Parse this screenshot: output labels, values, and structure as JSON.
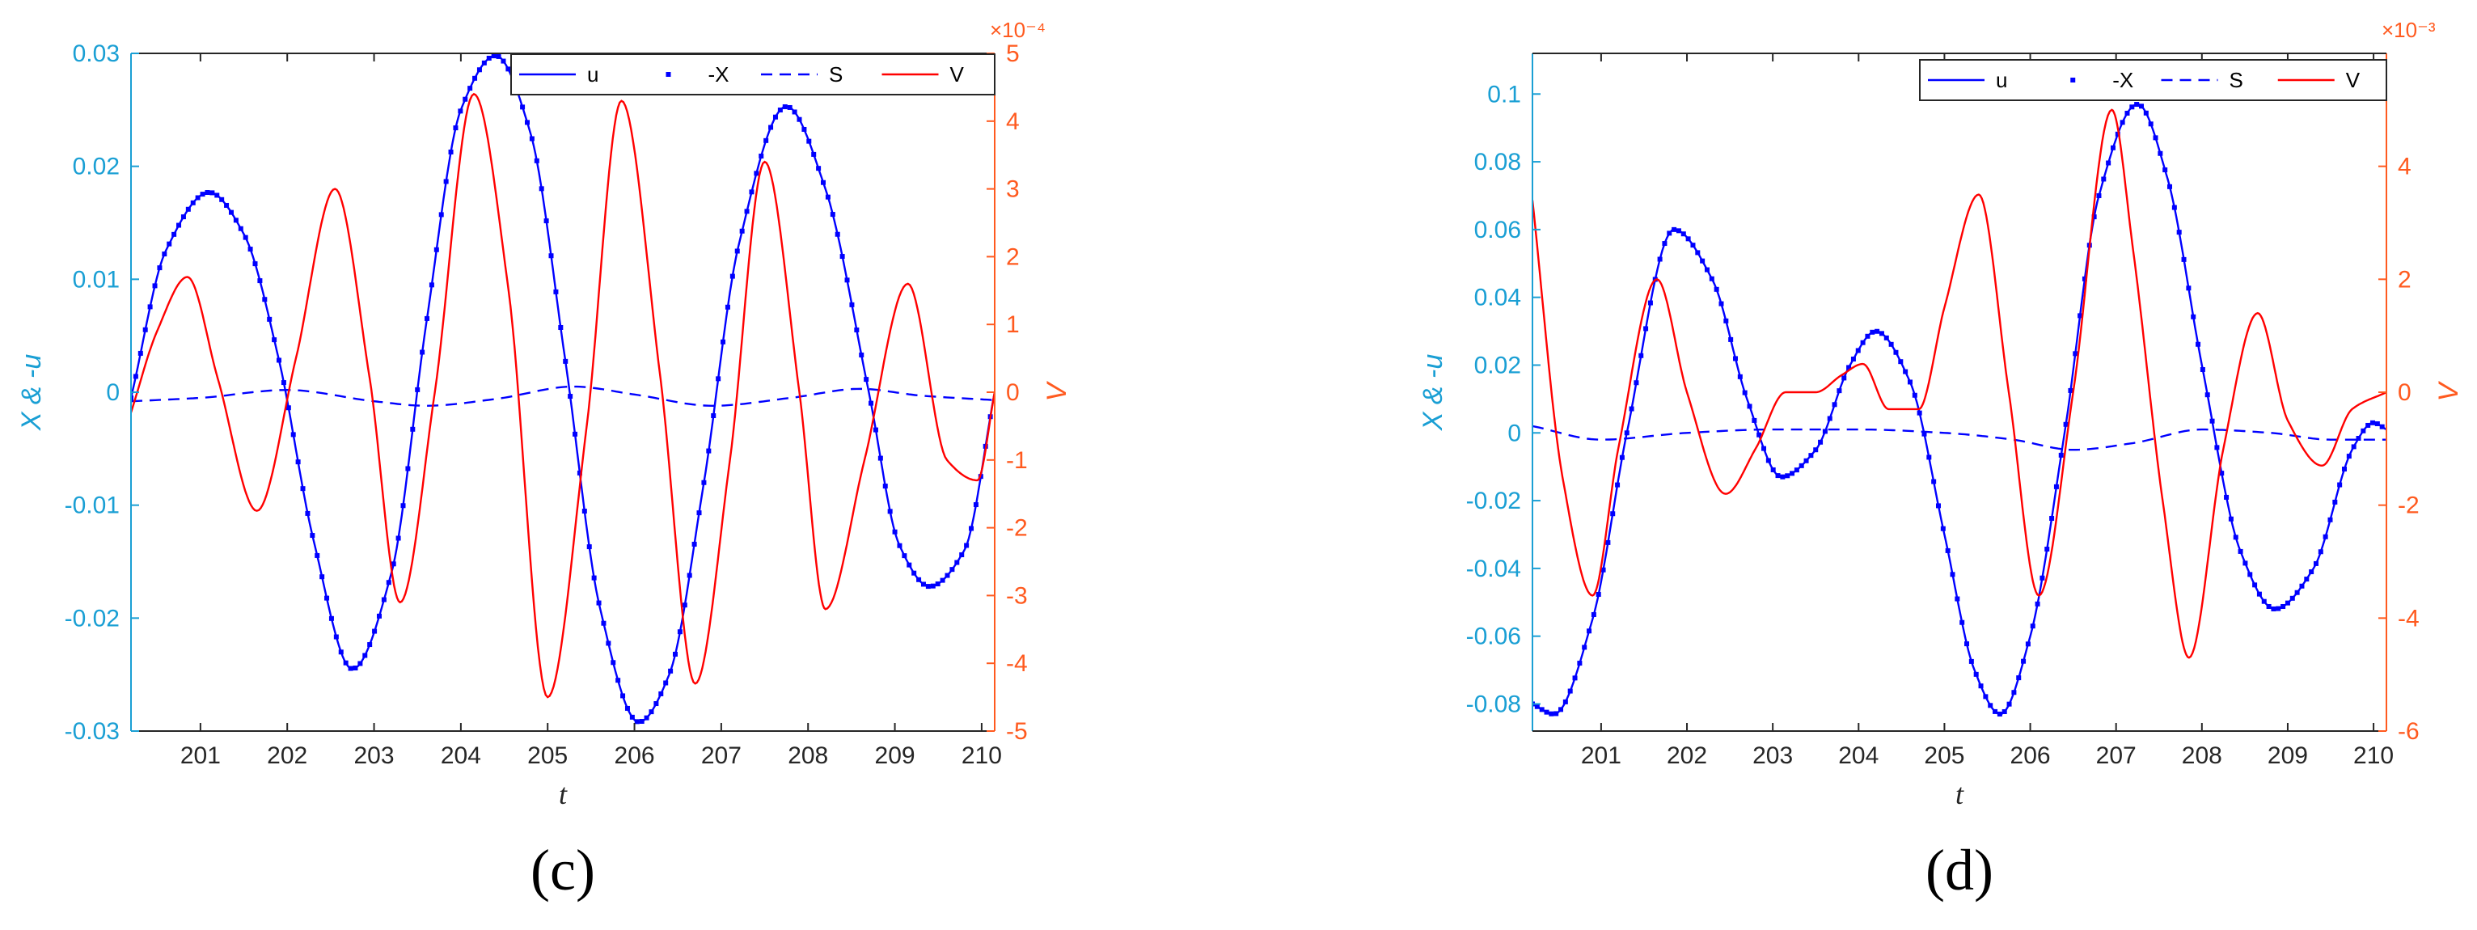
{
  "chart_data": [
    {
      "type": "line",
      "panel_label": "(c)",
      "xlabel": "t",
      "ylabel_left": "X & -u",
      "ylabel_right": "V",
      "right_axis_multiplier": "×10⁻⁴",
      "xlim": [
        200.2,
        210.15
      ],
      "ylim_left": [
        -0.03,
        0.03
      ],
      "ylim_right": [
        -5,
        5
      ],
      "x_ticks": [
        201,
        202,
        203,
        204,
        205,
        206,
        207,
        208,
        209,
        210
      ],
      "y_ticks_left": [
        -0.03,
        -0.02,
        -0.01,
        0,
        0.01,
        0.02,
        0.03
      ],
      "y_tick_labels_left": [
        "-0.03",
        "-0.02",
        "-0.01",
        "0",
        "0.01",
        "0.02",
        "0.03"
      ],
      "y_ticks_right": [
        -5,
        -4,
        -3,
        -2,
        -1,
        0,
        1,
        2,
        3,
        4,
        5
      ],
      "y_tick_labels_right": [
        "-5",
        "-4",
        "-3",
        "-2",
        "-1",
        "0",
        "1",
        "2",
        "3",
        "4",
        "5"
      ],
      "legend": {
        "placement": "top-right",
        "entries": [
          "u",
          "-X",
          "S",
          "V"
        ]
      },
      "grid": false,
      "series": [
        {
          "name": "u",
          "axis": "left",
          "style": "solid",
          "color": "#0000ff",
          "x": [
            200.2,
            200.6,
            201.1,
            201.5,
            201.9,
            202.3,
            202.75,
            203.2,
            203.6,
            204.0,
            204.4,
            204.8,
            205.2,
            205.6,
            206.05,
            206.4,
            206.8,
            207.2,
            207.75,
            208.2,
            208.7,
            209.05,
            209.4,
            209.8,
            210.15
          ],
          "y": [
            -0.0005,
            0.0125,
            0.0177,
            0.014,
            0.003,
            -0.013,
            -0.0245,
            -0.016,
            0.006,
            0.025,
            0.0298,
            0.023,
            0.003,
            -0.019,
            -0.0292,
            -0.025,
            -0.008,
            0.013,
            0.0253,
            0.018,
            0.0,
            -0.0135,
            -0.0172,
            -0.014,
            0.0
          ]
        },
        {
          "name": "-X",
          "axis": "left",
          "style": "dotted",
          "color": "#0000ff",
          "x": [
            200.2,
            200.6,
            201.1,
            201.5,
            201.9,
            202.3,
            202.75,
            203.2,
            203.6,
            204.0,
            204.4,
            204.8,
            205.2,
            205.6,
            206.05,
            206.4,
            206.8,
            207.2,
            207.75,
            208.2,
            208.7,
            209.05,
            209.4,
            209.8,
            210.15
          ],
          "y": [
            -0.0005,
            0.0125,
            0.0177,
            0.014,
            0.003,
            -0.013,
            -0.0245,
            -0.016,
            0.006,
            0.025,
            0.0298,
            0.023,
            0.003,
            -0.019,
            -0.0292,
            -0.025,
            -0.008,
            0.013,
            0.0253,
            0.018,
            0.0,
            -0.0135,
            -0.0172,
            -0.014,
            0.0
          ]
        },
        {
          "name": "S",
          "axis": "left",
          "style": "dashed",
          "color": "#0000ff",
          "x": [
            200.2,
            201.0,
            202.0,
            203.0,
            203.6,
            204.4,
            205.3,
            206.0,
            206.9,
            207.8,
            208.6,
            209.3,
            210.15
          ],
          "y": [
            -0.0008,
            -0.0005,
            0.0002,
            -0.0008,
            -0.0012,
            -0.0006,
            0.0005,
            -0.0002,
            -0.0012,
            -0.0005,
            0.0003,
            -0.0003,
            -0.0007
          ]
        },
        {
          "name": "V",
          "axis": "right",
          "style": "solid",
          "color": "#ff0000",
          "x": [
            200.2,
            200.5,
            200.85,
            201.2,
            201.65,
            202.1,
            202.55,
            202.95,
            203.3,
            203.7,
            204.15,
            204.55,
            205.0,
            205.45,
            205.85,
            206.3,
            206.7,
            207.1,
            207.5,
            207.9,
            208.2,
            208.65,
            209.15,
            209.6,
            209.95,
            210.15
          ],
          "y": [
            -0.3,
            0.9,
            1.7,
            0.2,
            -1.75,
            0.5,
            3.0,
            0.2,
            -3.1,
            0.0,
            4.4,
            1.5,
            -4.5,
            -0.5,
            4.3,
            0.2,
            -4.3,
            -1.0,
            3.4,
            0.0,
            -3.2,
            -1.0,
            1.6,
            -1.0,
            -1.3,
            0.0
          ]
        }
      ]
    },
    {
      "type": "line",
      "panel_label": "(d)",
      "xlabel": "t",
      "ylabel_left": "X & -u",
      "ylabel_right": "V",
      "right_axis_multiplier": "×10⁻³",
      "xlim": [
        200.2,
        210.15
      ],
      "ylim_left": [
        -0.088,
        0.112
      ],
      "ylim_right": [
        -6,
        6
      ],
      "x_ticks": [
        201,
        202,
        203,
        204,
        205,
        206,
        207,
        208,
        209,
        210
      ],
      "y_ticks_left": [
        -0.08,
        -0.06,
        -0.04,
        -0.02,
        0,
        0.02,
        0.04,
        0.06,
        0.08,
        0.1
      ],
      "y_tick_labels_left": [
        "-0.08",
        "-0.06",
        "-0.04",
        "-0.02",
        "0",
        "0.02",
        "0.04",
        "0.06",
        "0.08",
        "0.1"
      ],
      "y_ticks_right": [
        -6,
        -4,
        -2,
        0,
        2,
        4
      ],
      "y_tick_labels_right": [
        "-6",
        "-4",
        "-2",
        "0",
        "2",
        "4"
      ],
      "legend": {
        "placement": "top-right",
        "entries": [
          "u",
          "-X",
          "S",
          "V"
        ]
      },
      "grid": false,
      "series": [
        {
          "name": "u",
          "axis": "left",
          "style": "solid",
          "color": "#0000ff",
          "x": [
            200.2,
            200.45,
            200.9,
            201.3,
            201.85,
            202.3,
            202.7,
            203.1,
            203.5,
            203.9,
            204.2,
            204.6,
            205.0,
            205.35,
            205.65,
            206.0,
            206.4,
            206.8,
            207.25,
            207.6,
            208.0,
            208.45,
            208.85,
            209.3,
            209.75,
            210.0,
            210.15
          ],
          "y": [
            -0.08,
            -0.083,
            -0.055,
            0.0,
            0.06,
            0.045,
            0.01,
            -0.013,
            -0.005,
            0.02,
            0.03,
            0.015,
            -0.03,
            -0.07,
            -0.083,
            -0.06,
            0.0,
            0.07,
            0.097,
            0.075,
            0.02,
            -0.035,
            -0.052,
            -0.04,
            -0.005,
            0.003,
            0.001
          ]
        },
        {
          "name": "-X",
          "axis": "left",
          "style": "dotted",
          "color": "#0000ff",
          "x": [
            200.2,
            200.45,
            200.9,
            201.3,
            201.85,
            202.3,
            202.7,
            203.1,
            203.5,
            203.9,
            204.2,
            204.6,
            205.0,
            205.35,
            205.65,
            206.0,
            206.4,
            206.8,
            207.25,
            207.6,
            208.0,
            208.45,
            208.85,
            209.3,
            209.75,
            210.0,
            210.15
          ],
          "y": [
            -0.08,
            -0.083,
            -0.055,
            0.0,
            0.06,
            0.045,
            0.01,
            -0.013,
            -0.005,
            0.02,
            0.03,
            0.015,
            -0.03,
            -0.07,
            -0.083,
            -0.06,
            0.0,
            0.07,
            0.097,
            0.075,
            0.02,
            -0.035,
            -0.052,
            -0.04,
            -0.005,
            0.003,
            0.001
          ]
        },
        {
          "name": "S",
          "axis": "left",
          "style": "dashed",
          "color": "#0000ff",
          "x": [
            200.2,
            201.0,
            202.0,
            203.0,
            204.0,
            205.0,
            205.8,
            206.5,
            207.2,
            208.0,
            208.8,
            209.5,
            210.15
          ],
          "y": [
            0.002,
            -0.002,
            0.0,
            0.001,
            0.001,
            0.0,
            -0.002,
            -0.005,
            -0.003,
            0.001,
            0.0,
            -0.002,
            -0.002
          ]
        },
        {
          "name": "V",
          "axis": "right",
          "style": "solid",
          "color": "#ff0000",
          "x": [
            200.2,
            200.55,
            200.9,
            201.2,
            201.65,
            202.0,
            202.45,
            202.8,
            203.15,
            203.5,
            203.8,
            204.05,
            204.35,
            204.7,
            205.0,
            205.4,
            205.75,
            206.1,
            206.5,
            206.95,
            207.2,
            207.55,
            207.85,
            208.25,
            208.65,
            209.0,
            209.4,
            209.75,
            210.15
          ],
          "y": [
            3.4,
            -1.5,
            -3.6,
            -1.0,
            2.0,
            0.0,
            -1.8,
            -1.0,
            0.0,
            0.0,
            0.3,
            0.5,
            -0.3,
            -0.3,
            1.5,
            3.5,
            0.0,
            -3.6,
            0.0,
            5.0,
            2.5,
            -2.0,
            -4.7,
            -1.0,
            1.4,
            -0.5,
            -1.3,
            -0.3,
            0.0
          ]
        }
      ]
    }
  ]
}
